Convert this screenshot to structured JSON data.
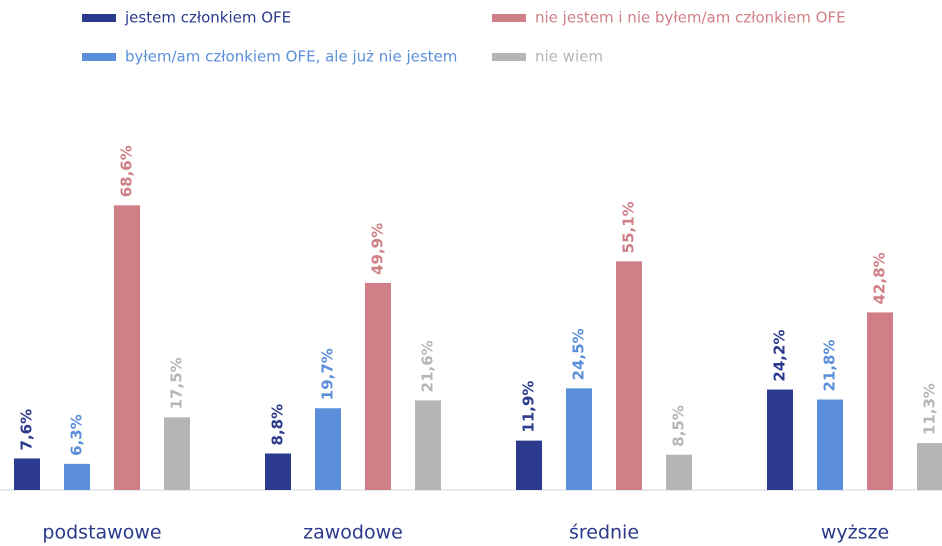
{
  "chart_data": {
    "type": "bar",
    "categories": [
      "podstawowe",
      "zawodowe",
      "średnie",
      "wyższe"
    ],
    "series": [
      {
        "name": "jestem członkiem OFE",
        "color": "#2b3a8c",
        "values": [
          7.6,
          8.8,
          11.9,
          24.2
        ],
        "value_labels": [
          "7,6%",
          "8,8%",
          "11,9%",
          "24,2%"
        ]
      },
      {
        "name": "byłem/am członkiem OFE, ale już nie jestem",
        "color": "#5b8fdc",
        "values": [
          6.3,
          19.7,
          24.5,
          21.8
        ],
        "value_labels": [
          "6,3%",
          "19,7%",
          "24,5%",
          "21,8%"
        ]
      },
      {
        "name": "nie jestem i nie byłem/am członkiem OFE",
        "color": "#d07f86",
        "values": [
          68.6,
          49.9,
          55.1,
          42.8
        ],
        "value_labels": [
          "68,6%",
          "49,9%",
          "55,1%",
          "42,8%"
        ]
      },
      {
        "name": "nie wiem",
        "color": "#b5b5b5",
        "values": [
          17.5,
          21.6,
          8.5,
          11.3
        ],
        "value_labels": [
          "17,5%",
          "21,6%",
          "8,5%",
          "11,3%"
        ]
      }
    ],
    "ylim": [
      0,
      100
    ],
    "legend": "top"
  }
}
